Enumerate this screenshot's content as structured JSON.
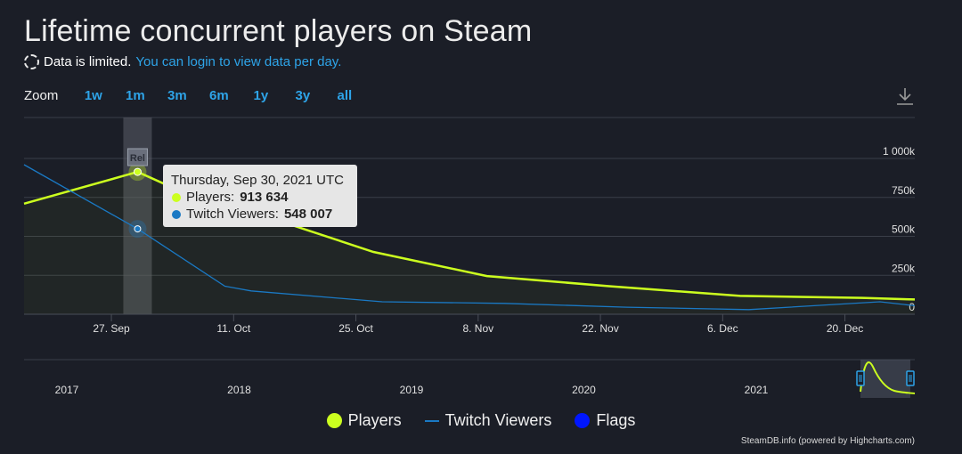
{
  "title": "Lifetime concurrent players on Steam",
  "notice": {
    "text": "Data is limited.",
    "link": "You can login to view data per day."
  },
  "zoom": {
    "label": "Zoom",
    "options": [
      "1w",
      "1m",
      "3m",
      "6m",
      "1y",
      "3y",
      "all"
    ]
  },
  "credit": "SteamDB.info (powered by Highcharts.com)",
  "legend": [
    {
      "name": "Players",
      "color": "#ccff1f",
      "shape": "dot"
    },
    {
      "name": "Twitch Viewers",
      "color": "#1a79c4",
      "shape": "line"
    },
    {
      "name": "Flags",
      "color": "#0016ff",
      "shape": "dot"
    }
  ],
  "tooltip": {
    "date": "Thursday, Sep 30, 2021 UTC",
    "rows": [
      {
        "label": "Players:",
        "value": "913 634",
        "color": "#ccff1f"
      },
      {
        "label": "Twitch Viewers:",
        "value": "548 007",
        "color": "#1a79c4"
      }
    ]
  },
  "flag_label": "Rel",
  "chart_data": {
    "type": "line",
    "x_range": [
      "2021-09-17",
      "2021-12-28"
    ],
    "y_ticks": [
      "0",
      "250k",
      "500k",
      "750k",
      "1 000k"
    ],
    "ylim": [
      0,
      1000000
    ],
    "x_ticks": [
      "27. Sep",
      "11. Oct",
      "25. Oct",
      "8. Nov",
      "22. Nov",
      "6. Dec",
      "20. Dec"
    ],
    "x_tick_dates": [
      "2021-09-27",
      "2021-10-11",
      "2021-10-25",
      "2021-11-08",
      "2021-11-22",
      "2021-12-06",
      "2021-12-20"
    ],
    "series": [
      {
        "name": "Players",
        "color": "#ccff1f",
        "points": [
          [
            "2021-09-17",
            710000
          ],
          [
            "2021-09-30",
            913634
          ],
          [
            "2021-10-03",
            838000
          ],
          [
            "2021-10-14",
            640000
          ],
          [
            "2021-10-27",
            400000
          ],
          [
            "2021-11-09",
            245000
          ],
          [
            "2021-11-23",
            180000
          ],
          [
            "2021-12-08",
            118000
          ],
          [
            "2021-12-22",
            105000
          ],
          [
            "2021-12-28",
            95000
          ]
        ]
      },
      {
        "name": "Twitch Viewers",
        "color": "#1a79c4",
        "points": [
          [
            "2021-09-17",
            960000
          ],
          [
            "2021-09-30",
            548007
          ],
          [
            "2021-10-10",
            180000
          ],
          [
            "2021-10-13",
            150000
          ],
          [
            "2021-10-28",
            80000
          ],
          [
            "2021-11-11",
            70000
          ],
          [
            "2021-11-25",
            45000
          ],
          [
            "2021-12-09",
            30000
          ],
          [
            "2021-12-24",
            80000
          ],
          [
            "2021-12-28",
            55000
          ]
        ]
      }
    ],
    "flags": [
      {
        "date": "2021-09-30",
        "label": "Rel"
      }
    ],
    "highlight_date": "2021-09-30",
    "navigator": {
      "years": [
        "2017",
        "2018",
        "2019",
        "2020",
        "2021"
      ]
    },
    "grid": true
  }
}
